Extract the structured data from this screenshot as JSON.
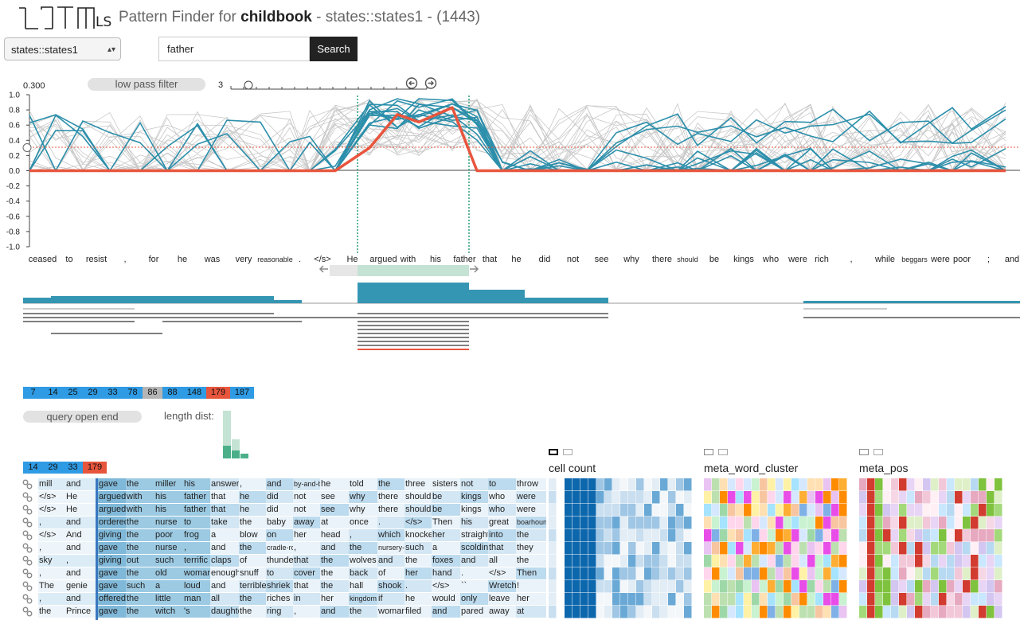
{
  "app": {
    "name": "LSTMVis",
    "title_prefix": "Pattern Finder for ",
    "dataset": "childbook",
    "title_suffix": " - states::states1 - (1443)"
  },
  "controls": {
    "state_select_value": "states::states1",
    "search_value": "father",
    "search_button": "Search",
    "low_pass_label": "low pass filter",
    "threshold": "0.300",
    "filter_length": "3",
    "query_open_end_label": "query open end",
    "length_dist_label": "length dist:"
  },
  "chart_data": {
    "type": "line",
    "ylim": [
      -1.0,
      1.0
    ],
    "yticks": [
      "1.0",
      "0.8",
      "0.6",
      "0.4",
      "0.2",
      "0.0",
      "-0.2",
      "-0.4",
      "-0.6",
      "-0.8",
      "-1.0"
    ],
    "threshold": 0.3,
    "words": [
      "ceased",
      "to",
      "resist",
      ",",
      "for",
      "he",
      "was",
      "very",
      "reasonable",
      ".",
      "</s>",
      "He",
      "argued",
      "with",
      "his",
      "father",
      "that",
      "he",
      "did",
      "not",
      "see",
      "why",
      "there",
      "should",
      "be",
      "kings",
      "who",
      "were",
      "rich",
      ",",
      "while",
      "beggars",
      "were",
      "poor",
      ";",
      "and"
    ],
    "selection": {
      "start": 12,
      "end": 15
    },
    "series_highlight": {
      "name": "",
      "values": [
        0,
        0,
        0,
        0,
        0,
        0,
        0,
        0,
        0,
        0,
        0,
        0,
        0.3,
        0.74,
        0.64,
        0.83,
        0,
        0,
        0,
        0,
        0,
        0,
        0,
        0,
        0,
        0,
        0,
        0,
        0,
        0,
        0,
        0,
        0,
        0,
        0,
        0
      ]
    }
  },
  "badges_top": [
    {
      "label": "7",
      "color": "#2f9be4"
    },
    {
      "label": "14",
      "color": "#2f9be4"
    },
    {
      "label": "25",
      "color": "#2f9be4"
    },
    {
      "label": "29",
      "color": "#2f9be4"
    },
    {
      "label": "33",
      "color": "#2f9be4"
    },
    {
      "label": "78",
      "color": "#2f9be4"
    },
    {
      "label": "86",
      "color": "#b5b5b5"
    },
    {
      "label": "88",
      "color": "#2f9be4"
    },
    {
      "label": "148",
      "color": "#2f9be4"
    },
    {
      "label": "179",
      "color": "#e8553d"
    },
    {
      "label": "187",
      "color": "#2f9be4"
    }
  ],
  "badges_bottom": [
    {
      "label": "14",
      "color": "#2f9be4"
    },
    {
      "label": "29",
      "color": "#2f9be4"
    },
    {
      "label": "33",
      "color": "#2f9be4"
    },
    {
      "label": "179",
      "color": "#e8553d"
    }
  ],
  "results": [
    [
      "mill",
      "and",
      "gave",
      "the",
      "miller",
      "his",
      "answer",
      ",",
      "and",
      "by-and-by",
      "he",
      "told",
      "the",
      "three",
      "sisters",
      "not",
      "to",
      "throw"
    ],
    [
      "</s>",
      "He",
      "argued",
      "with",
      "his",
      "father",
      "that",
      "he",
      "did",
      "not",
      "see",
      "why",
      "there",
      "should",
      "be",
      "kings",
      "who",
      "were"
    ],
    [
      "</s>",
      "He",
      "argued",
      "with",
      "his",
      "father",
      "that",
      "he",
      "did",
      "not",
      "see",
      "why",
      "there",
      "should",
      "be",
      "kings",
      "who",
      "were"
    ],
    [
      ",",
      "and",
      "ordered",
      "the",
      "nurse",
      "to",
      "take",
      "the",
      "baby",
      "away",
      "at",
      "once",
      ".",
      "</s>",
      "Then",
      "his",
      "great",
      "boarhound"
    ],
    [
      "</s>",
      "And",
      "giving",
      "the",
      "poor",
      "frog",
      "a",
      "blow",
      "on",
      "her",
      "head",
      ",",
      "which",
      "knocked",
      "her",
      "straight",
      "into",
      "the"
    ],
    [
      ",",
      "and",
      "gave",
      "the",
      "nurse",
      ",",
      "and",
      "the",
      "cradle-rocker",
      ",",
      "and",
      "the",
      "nursery-maid",
      "such",
      "a",
      "scolding",
      "that",
      "they"
    ],
    [
      "sky",
      ",",
      "giving",
      "out",
      "such",
      "terrific",
      "claps",
      "of",
      "thunder",
      "that",
      "the",
      "wolves",
      "and",
      "the",
      "foxes",
      "and",
      "all",
      "the"
    ],
    [
      ",",
      "and",
      "gave",
      "the",
      "old",
      "woman",
      "enough",
      "snuff",
      "to",
      "cover",
      "the",
      "back",
      "of",
      "her",
      "hand",
      ".",
      "</s>",
      "Then"
    ],
    [
      "The",
      "genie",
      "gave",
      "such",
      "a",
      "loud",
      "and",
      "terrible",
      "shriek",
      "that",
      "the",
      "hall",
      "shook",
      ".",
      "</s>",
      "``",
      "Wretch",
      "!"
    ],
    [
      ",",
      "and",
      "offered",
      "the",
      "little",
      "man",
      "all",
      "the",
      "riches",
      "in",
      "her",
      "kingdom",
      "if",
      "he",
      "would",
      "only",
      "leave",
      "her"
    ],
    [
      "the",
      "Prince",
      "gave",
      "the",
      "witch",
      "'s",
      "daughter",
      "the",
      "ring",
      ",",
      "and",
      "the",
      "woman",
      "filed",
      "and",
      "pared",
      "away",
      "at"
    ]
  ],
  "heatmaps": [
    {
      "title": "cell count"
    },
    {
      "title": "meta_word_cluster"
    },
    {
      "title": "meta_pos"
    }
  ]
}
